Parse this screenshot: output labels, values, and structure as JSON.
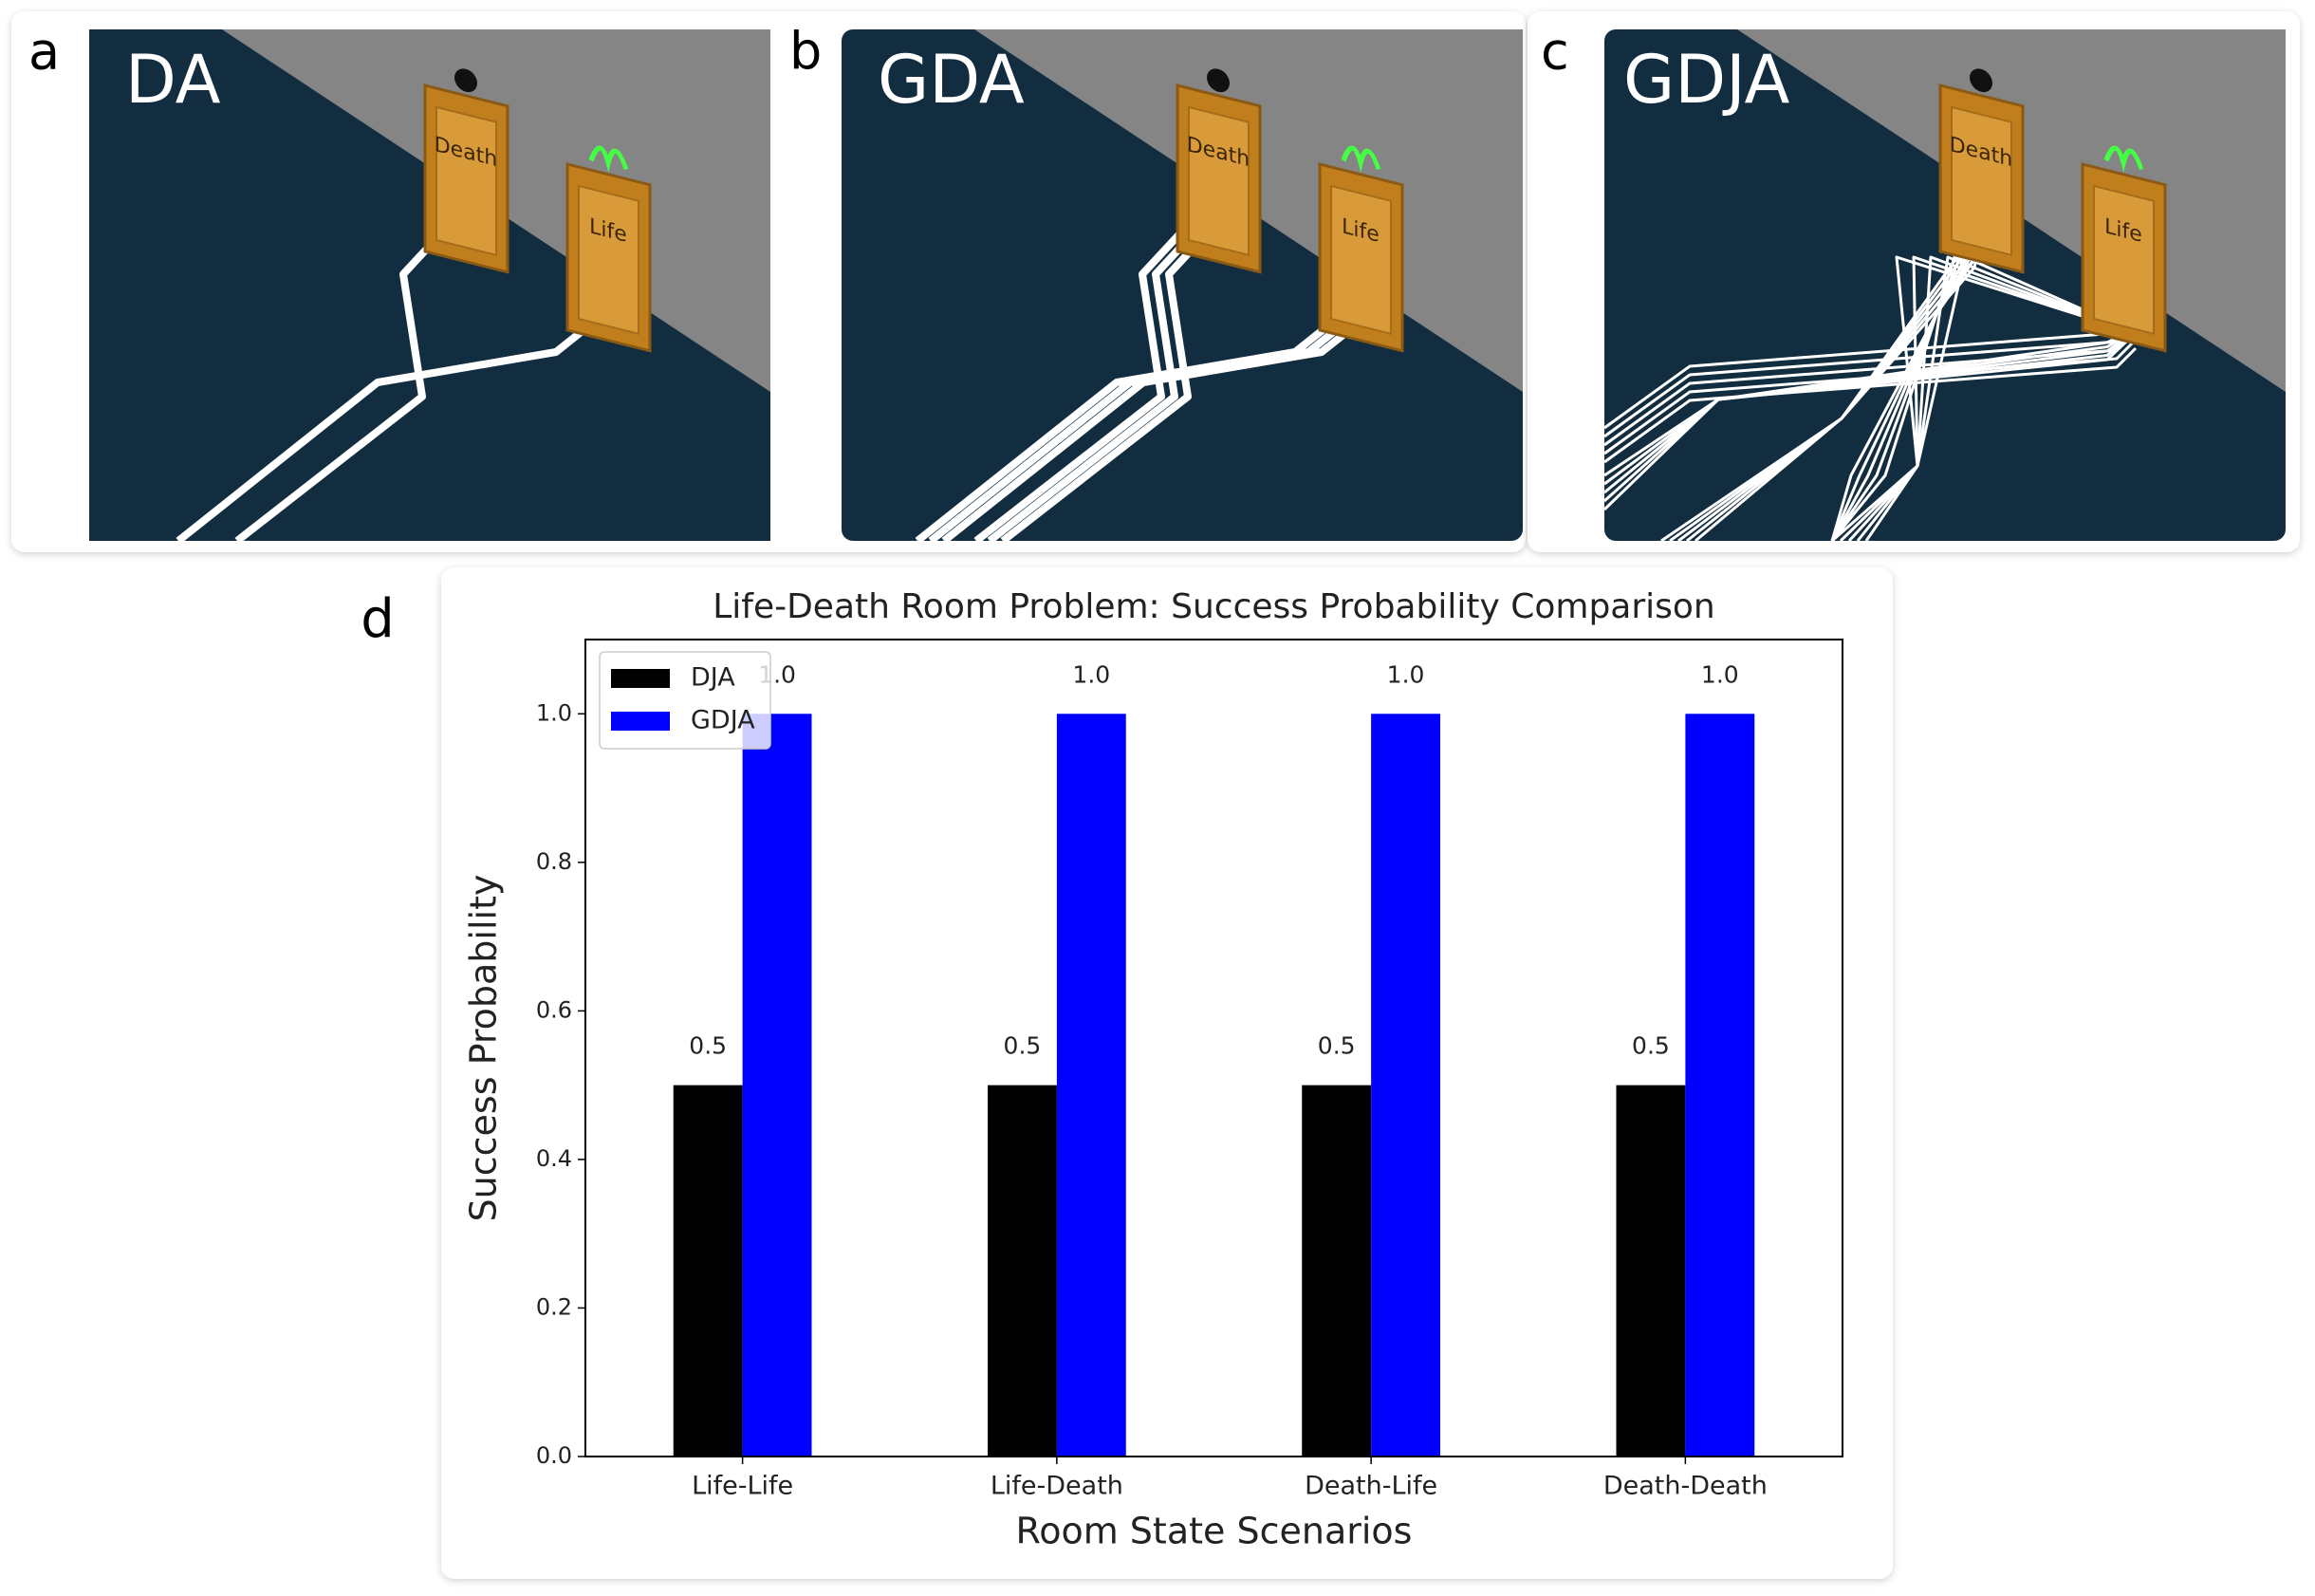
{
  "panels": [
    {
      "letter": "a",
      "title": "DA",
      "doors": [
        "Death",
        "Life"
      ]
    },
    {
      "letter": "b",
      "title": "GDA",
      "doors": [
        "Death",
        "Life"
      ]
    },
    {
      "letter": "c",
      "title": "GDJA",
      "doors": [
        "Death",
        "Life"
      ]
    }
  ],
  "chart_letter": "d",
  "chart_data": {
    "type": "bar",
    "title": "Life-Death Room Problem: Success Probability Comparison",
    "xlabel": "Room State Scenarios",
    "ylabel": "Success Probability",
    "categories": [
      "Life-Life",
      "Life-Death",
      "Death-Life",
      "Death-Death"
    ],
    "series": [
      {
        "name": "DJA",
        "color": "#000000",
        "values": [
          0.5,
          0.5,
          0.5,
          0.5
        ],
        "value_labels": [
          "0.5",
          "0.5",
          "0.5",
          "0.5"
        ]
      },
      {
        "name": "GDJA",
        "color": "#0000ff",
        "values": [
          1.0,
          1.0,
          1.0,
          1.0
        ],
        "value_labels": [
          "1.0",
          "1.0",
          "1.0",
          "1.0"
        ]
      }
    ],
    "ylim": [
      0,
      1.1
    ],
    "yticks": [
      {
        "value": 0,
        "label": "0.0"
      },
      0.2,
      0.4,
      0.6,
      0.8,
      {
        "value": 1,
        "label": "1.0"
      }
    ],
    "legend": "upper left",
    "grid": false
  }
}
